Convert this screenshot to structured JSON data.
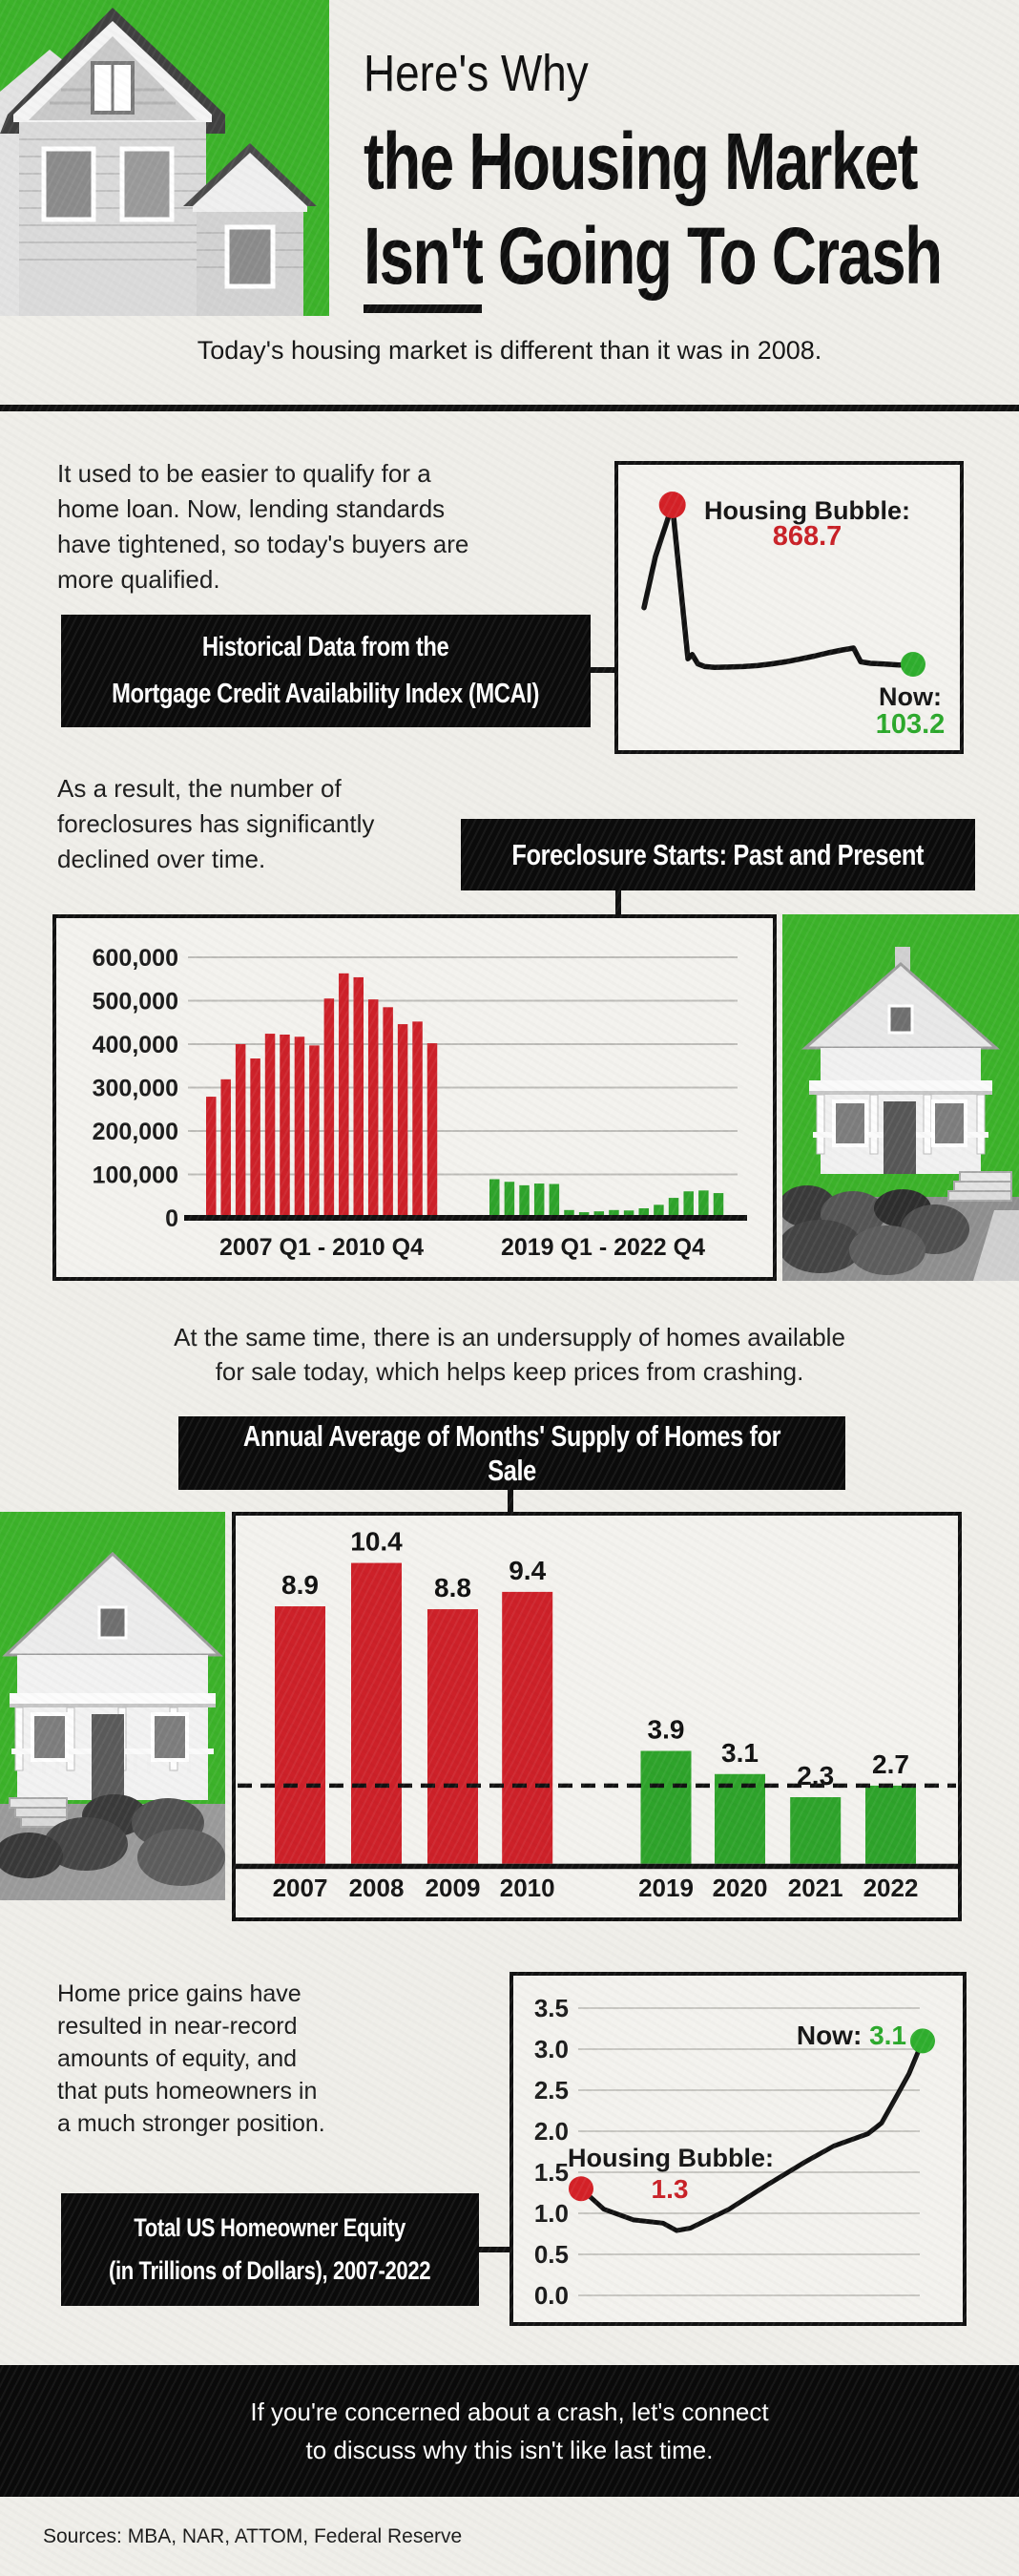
{
  "page": {
    "bg": "#efeee9",
    "ink": "#111111",
    "green_block": "#3cb22a",
    "bar_green": "#2ea32b",
    "bar_red": "#cd2129",
    "text_red": "#c92127",
    "text_green": "#2aa82a"
  },
  "header": {
    "title_line1": "Here's Why",
    "title_line2": "the Housing Market",
    "title_word_underlined": "Isn't",
    "title_line3_rest": " Going To Crash",
    "subtitle": "Today's housing market is different than it was in 2008."
  },
  "sections": {
    "mcai": {
      "body": "It used to be easier to qualify for a\nhome loan. Now, lending standards\nhave tightened, so today's buyers are\nmore qualified.",
      "label": "Historical Data from the\nMortgage Credit Availability Index (MCAI)"
    },
    "foreclosure": {
      "body": "As a result, the number of\nforeclosures has significantly\ndeclined over time.",
      "label": "Foreclosure Starts: Past and Present"
    },
    "supply": {
      "body": "At the same time, there is an undersupply of  homes available\nfor sale today, which helps keep prices from crashing.",
      "label": "Annual Average of Months' Supply of Homes for Sale"
    },
    "equity": {
      "body": "Home price gains have\nresulted in near-record\namounts of equity, and\nthat puts homeowners in\na much stronger position.",
      "label": "Total US Homeowner Equity\n(in Trillions of Dollars), 2007-2022"
    }
  },
  "footer": {
    "cta": "If you're concerned about a crash, let's connect\nto discuss why this isn't like last time.",
    "sources": "Sources: MBA, NAR, ATTOM, Federal Reserve"
  },
  "chart_data": [
    {
      "id": "chart-mcai",
      "type": "line",
      "title": "Historical Data from the Mortgage Credit Availability Index (MCAI)",
      "x_range": [
        2004,
        2023
      ],
      "annotations": [
        {
          "text": "Housing Bubble:",
          "value_label": "868.7",
          "value": 868.7,
          "color": "#c92127",
          "dot_color": "#d42127"
        },
        {
          "text": "Now:",
          "value_label": "103.2",
          "value": 103.2,
          "color": "#2aa82a",
          "dot_color": "#2fae2e"
        }
      ],
      "points": [
        [
          2004,
          375
        ],
        [
          2004.8,
          620
        ],
        [
          2006,
          868.7
        ],
        [
          2007.1,
          130
        ],
        [
          2007.4,
          150
        ],
        [
          2007.8,
          105
        ],
        [
          2008.3,
          92
        ],
        [
          2009,
          88
        ],
        [
          2010,
          90
        ],
        [
          2011,
          92
        ],
        [
          2012,
          97
        ],
        [
          2013,
          105
        ],
        [
          2014,
          115
        ],
        [
          2015,
          128
        ],
        [
          2016,
          142
        ],
        [
          2017,
          158
        ],
        [
          2018,
          172
        ],
        [
          2018.8,
          181
        ],
        [
          2019.3,
          115
        ],
        [
          2020,
          108
        ],
        [
          2021,
          104
        ],
        [
          2022,
          100
        ],
        [
          2023,
          103.2
        ]
      ]
    },
    {
      "id": "chart-foreclosure",
      "type": "bar",
      "title": "Foreclosure Starts: Past and Present",
      "ylim": [
        0,
        620000
      ],
      "y_ticks": [
        {
          "v": 600000,
          "label": "600,000"
        },
        {
          "v": 500000,
          "label": "500,000"
        },
        {
          "v": 400000,
          "label": "400,000"
        },
        {
          "v": 300000,
          "label": "300,000"
        },
        {
          "v": 200000,
          "label": "200,000"
        },
        {
          "v": 100000,
          "label": "100,000"
        },
        {
          "v": 0,
          "label": "0"
        }
      ],
      "groups": [
        {
          "label": "2007 Q1 - 2010 Q4",
          "color": "#cd2129",
          "values": [
            279000,
            319000,
            400000,
            367000,
            424000,
            422000,
            417000,
            397000,
            505000,
            563000,
            554000,
            503000,
            485000,
            446000,
            452000,
            402000
          ]
        },
        {
          "label": "2019 Q1 - 2022 Q4",
          "color": "#2ea32b",
          "values": [
            89000,
            83000,
            75000,
            79000,
            78000,
            18000,
            13000,
            15000,
            18000,
            17000,
            22000,
            30000,
            46000,
            61000,
            63000,
            57000
          ]
        }
      ]
    },
    {
      "id": "chart-supply",
      "type": "bar",
      "title": "Annual Average of Months' Supply of Homes for Sale",
      "categories": [
        "2007",
        "2008",
        "2009",
        "2010",
        "2019",
        "2020",
        "2021",
        "2022"
      ],
      "values": [
        8.9,
        10.4,
        8.8,
        9.4,
        3.9,
        3.1,
        2.3,
        2.7
      ],
      "bar_colors": [
        "#cd2129",
        "#cd2129",
        "#cd2129",
        "#cd2129",
        "#2ea32b",
        "#2ea32b",
        "#2ea32b",
        "#2ea32b"
      ],
      "dashed_line_value": 2.7,
      "ylim": [
        0,
        12
      ]
    },
    {
      "id": "chart-equity",
      "type": "line",
      "title": "Total US Homeowner Equity (in Trillions of Dollars), 2007-2022",
      "ylim": [
        0,
        3.5
      ],
      "y_ticks": [
        3.5,
        3.0,
        2.5,
        2.0,
        1.5,
        1.0,
        0.5,
        0.0
      ],
      "annotations": [
        {
          "text": "Housing Bubble:",
          "value_label": "1.3",
          "value": 1.3,
          "color": "#c92127",
          "dot_color": "#d42127"
        },
        {
          "text": "Now:",
          "value_label": "3.1",
          "value": 3.1,
          "color": "#2aa82a",
          "dot_color": "#2fae2e"
        }
      ],
      "points": [
        [
          2007,
          1.3
        ],
        [
          2008,
          1.05
        ],
        [
          2009.3,
          0.92
        ],
        [
          2010.6,
          0.88
        ],
        [
          2011.2,
          0.79
        ],
        [
          2011.8,
          0.82
        ],
        [
          2013.5,
          1.05
        ],
        [
          2015.2,
          1.35
        ],
        [
          2016.8,
          1.62
        ],
        [
          2018.1,
          1.82
        ],
        [
          2018.9,
          1.9
        ],
        [
          2019.6,
          1.97
        ],
        [
          2020.2,
          2.1
        ],
        [
          2020.8,
          2.4
        ],
        [
          2021.4,
          2.7
        ],
        [
          2022,
          3.1
        ]
      ]
    }
  ]
}
